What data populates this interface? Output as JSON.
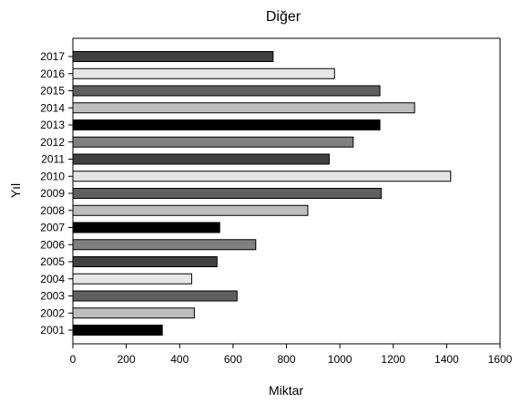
{
  "chart_data": {
    "type": "bar",
    "orientation": "horizontal",
    "title": "Diğer",
    "xlabel": "Miktar",
    "ylabel": "Yıl",
    "xlim": [
      0,
      1600
    ],
    "xticks": [
      "0",
      "200",
      "400",
      "600",
      "800",
      "1000",
      "1200",
      "1400",
      "1600"
    ],
    "grid": false,
    "categories": [
      "2001",
      "2002",
      "2003",
      "2004",
      "2005",
      "2006",
      "2007",
      "2008",
      "2009",
      "2010",
      "2011",
      "2012",
      "2013",
      "2014",
      "2015",
      "2016",
      "2017"
    ],
    "values": [
      335,
      455,
      615,
      445,
      540,
      685,
      550,
      880,
      1155,
      1415,
      960,
      1050,
      1150,
      1280,
      1150,
      980,
      750
    ],
    "colors": [
      "#000000",
      "#bdbdbd",
      "#5f5f5f",
      "#e6e6e6",
      "#3f3f3f",
      "#808080",
      "#000000",
      "#bdbdbd",
      "#5f5f5f",
      "#e6e6e6",
      "#3f3f3f",
      "#808080",
      "#000000",
      "#bdbdbd",
      "#5f5f5f",
      "#e6e6e6",
      "#3f3f3f"
    ]
  }
}
